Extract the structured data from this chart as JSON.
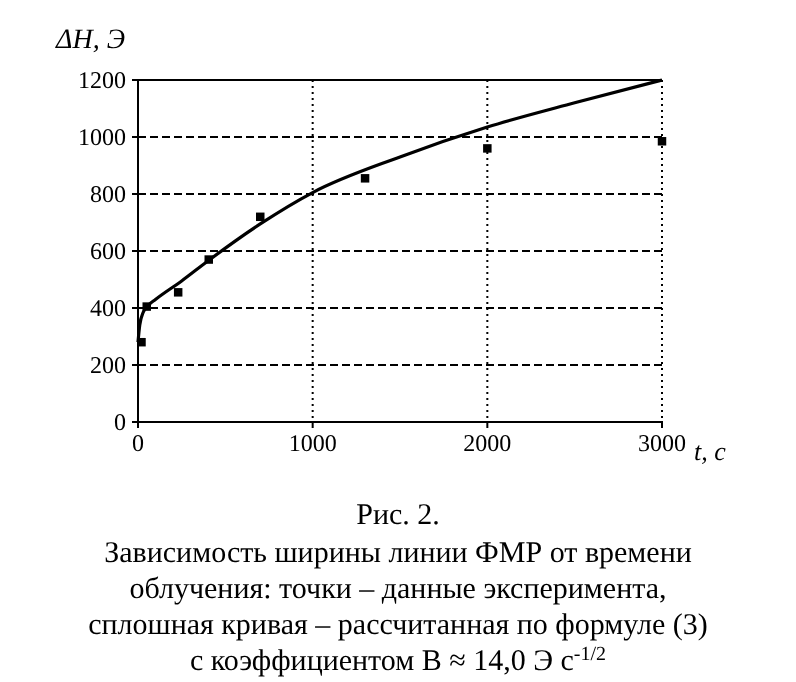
{
  "chart_data": {
    "type": "scatter",
    "title": "Рис. 2.",
    "xlabel": "t, c",
    "ylabel": "ΔH, Э",
    "xlim": [
      0,
      3000
    ],
    "xticks": [
      0,
      1000,
      2000,
      3000
    ],
    "ylim": [
      0,
      1200
    ],
    "yticks": [
      0,
      200,
      400,
      600,
      800,
      1000,
      1200
    ],
    "grid": true,
    "series": [
      {
        "marker": "square",
        "color": "#000000",
        "x": [
          20,
          50,
          230,
          405,
          700,
          1300,
          2000,
          3000
        ],
        "values": [
          280,
          405,
          455,
          570,
          720,
          855,
          960,
          985
        ]
      },
      {
        "type": "line",
        "marker": "none",
        "color": "#000000",
        "x": [
          0,
          10,
          30,
          60,
          100,
          250,
          400,
          700,
          1000,
          1500,
          2000,
          2500,
          3000
        ],
        "values": [
          280,
          340,
          385,
          410,
          430,
          495,
          565,
          695,
          805,
          930,
          1035,
          1120,
          1200
        ]
      }
    ],
    "annotations": [
      "Зависимость ширины линии ФМР от времени",
      "облучения: точки – данные эксперимента,",
      "сплошная кривая – рассчитанная по формуле (3)",
      "с коэффициентом B ≈ 14,0 Э с$^{-1/2}$"
    ]
  }
}
